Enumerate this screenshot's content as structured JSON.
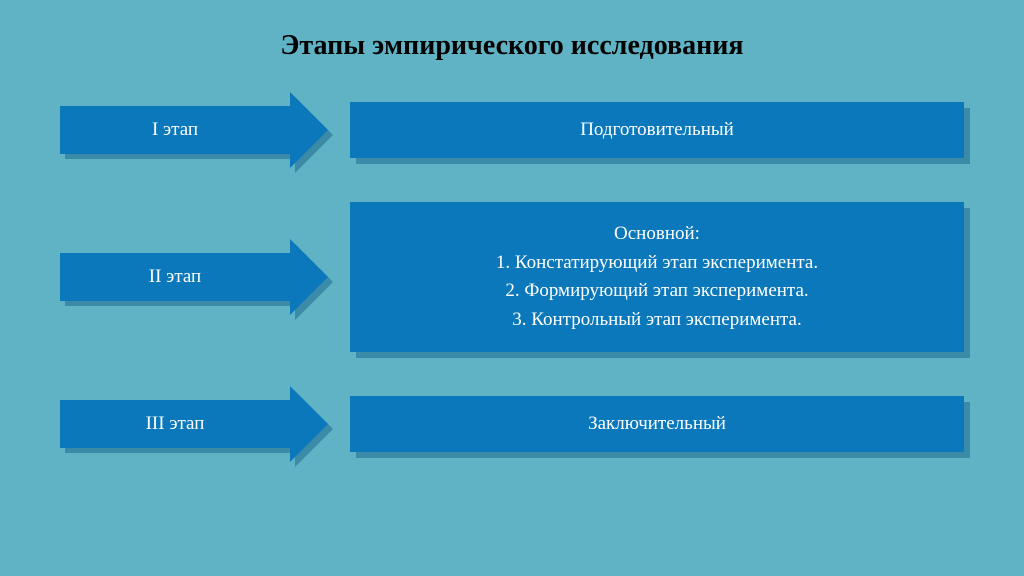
{
  "slide": {
    "title": "Этапы эмпирического исследования",
    "title_fontsize": 28,
    "background_color": "#5fb3c4",
    "arrow": {
      "fill_color": "#0a78ba",
      "shadow_color": "#3a8aa8",
      "text_color": "#ffffff",
      "shaft_width": 230,
      "shaft_height": 48,
      "head_width": 38,
      "head_height": 76,
      "label_fontsize": 19
    },
    "box": {
      "fill_color": "#0a78ba",
      "shadow_color": "#3a8aa8",
      "text_color": "#ffffff",
      "fontsize": 19
    },
    "rows": [
      {
        "arrow_label": "I этап",
        "box_lines": [
          "Подготовительный"
        ],
        "box_min_height": 52
      },
      {
        "arrow_label": "II этап",
        "box_lines": [
          "Основной:",
          "1. Констатирующий этап эксперимента.",
          "2. Формирующий этап эксперимента.",
          "3. Контрольный этап эксперимента."
        ],
        "box_min_height": 150
      },
      {
        "arrow_label": "III этап",
        "box_lines": [
          "Заключительный"
        ],
        "box_min_height": 52
      }
    ]
  }
}
